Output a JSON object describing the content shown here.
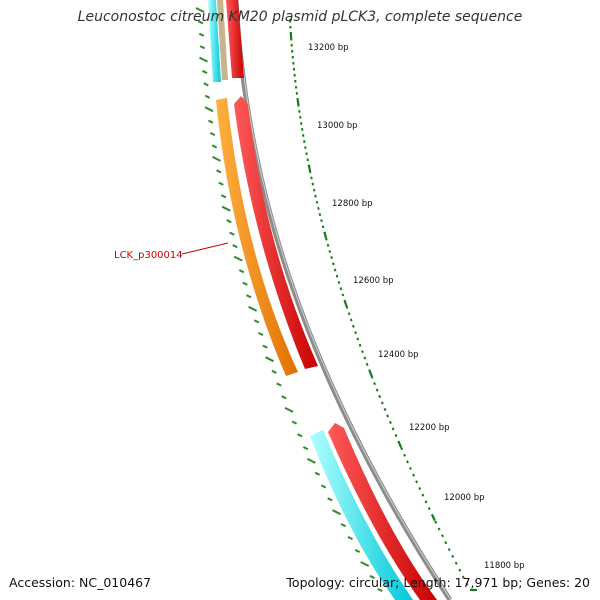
{
  "title": "Leuconostoc citreum KM20 plasmid pLCK3, complete sequence",
  "footer": {
    "accession": "Accession: NC_010467",
    "topology": "Topology: circular; Length: 17,971 bp; Genes: 20"
  },
  "ticks": [
    {
      "label": "13200 bp"
    },
    {
      "label": "13000 bp"
    },
    {
      "label": "12800 bp"
    },
    {
      "label": "12600 bp"
    },
    {
      "label": "12400 bp"
    },
    {
      "label": "12200 bp"
    },
    {
      "label": "12000 bp"
    },
    {
      "label": "11800 bp"
    }
  ],
  "genes": [
    {
      "label": "LCK_p300014"
    }
  ],
  "colors": {
    "backbone": "#8c8c8c",
    "cds_forward": "#ff0000",
    "gene_highlight": "#ff8c00",
    "cds_reverse": "#00e5ee",
    "gene_other": "#c8b48c",
    "tick": "#1a7a1a",
    "gc_skew": "#2e8b2e",
    "label": "#cc0000"
  }
}
